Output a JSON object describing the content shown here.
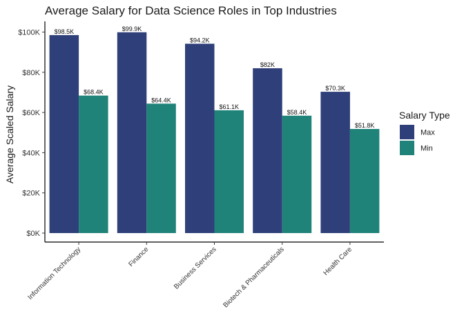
{
  "chart_data": {
    "type": "bar",
    "title": "Average Salary for Data Science Roles in Top Industries",
    "xlabel": "",
    "ylabel": "Average Scaled Salary",
    "ylim": [
      0,
      105
    ],
    "yticks": [
      0,
      20,
      40,
      60,
      80,
      100
    ],
    "ytick_labels": [
      "$0K",
      "$20K",
      "$40K",
      "$60K",
      "$80K",
      "$100K"
    ],
    "categories": [
      "Information Technology",
      "Finance",
      "Business Services",
      "Biotech & Pharmaceuticals",
      "Health Care"
    ],
    "series": [
      {
        "name": "Max",
        "color": "#2e3f7a",
        "values": [
          98.5,
          99.9,
          94.2,
          82,
          70.3
        ],
        "labels": [
          "$98.5K",
          "$99.9K",
          "$94.2K",
          "$82K",
          "$70.3K"
        ]
      },
      {
        "name": "Min",
        "color": "#20837a",
        "values": [
          68.4,
          64.4,
          61.1,
          58.4,
          51.8
        ],
        "labels": [
          "$68.4K",
          "$64.4K",
          "$61.1K",
          "$58.4K",
          "$51.8K"
        ]
      }
    ],
    "legend": {
      "title": "Salary Type",
      "position": "right"
    },
    "grid": false
  }
}
